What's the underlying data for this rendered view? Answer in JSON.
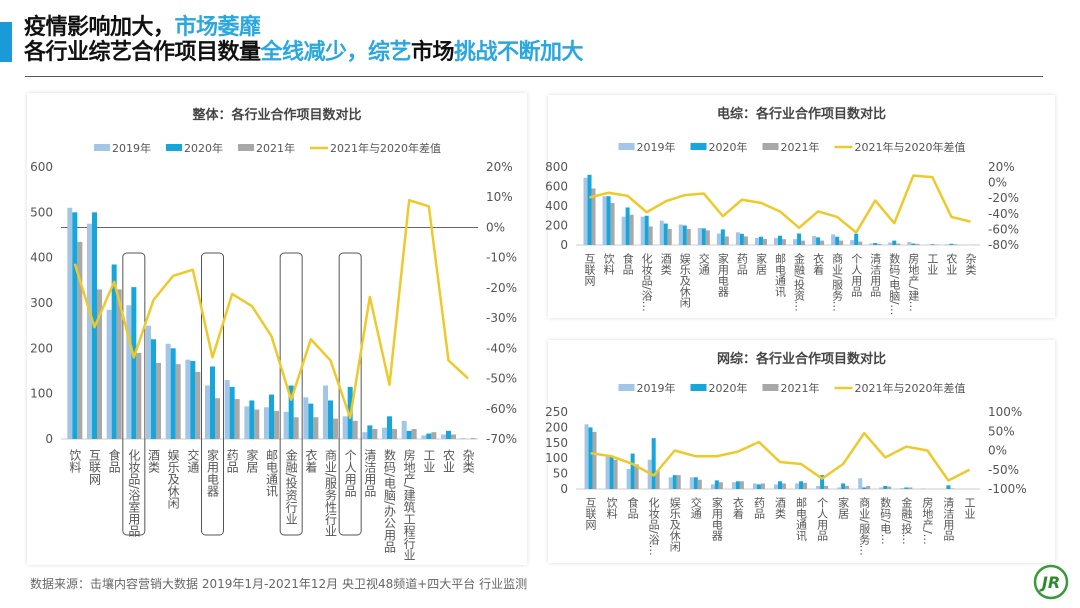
{
  "header": {
    "line1": [
      {
        "text": "疫情影响加大，",
        "accent": false
      },
      {
        "text": "市场萎靡",
        "accent": true
      }
    ],
    "line2": [
      {
        "text": "各行业综艺合作项目数量",
        "accent": false
      },
      {
        "text": "全线减少，综艺",
        "accent": true
      },
      {
        "text": "市场",
        "accent": false
      },
      {
        "text": "挑战不断加大",
        "accent": true
      }
    ]
  },
  "footer": {
    "source": "数据来源：击壤内容营销大数据 2019年1月-2021年12月 央卫视48频道+四大平台 行业监测"
  },
  "logo": {
    "text": "JR"
  },
  "colors": {
    "accent": "#2aa7df",
    "s2019": "#a3c6e6",
    "s2020": "#17a6da",
    "s2021": "#a8a8a8",
    "line": "#eec92c"
  },
  "chart_data": [
    {
      "type": "bar+line",
      "title": "整体：各行业合作项目数对比",
      "legend": [
        "2019年",
        "2020年",
        "2021年",
        "2021年与2020年差值"
      ],
      "legend_position": "top",
      "categories": [
        "饮料",
        "互联网",
        "食品",
        "化妆品/浴室用品",
        "酒类",
        "娱乐及休闲",
        "交通",
        "家用电器",
        "药品",
        "家居",
        "邮电通讯",
        "金融/投资行业",
        "衣着",
        "商业/服务性行业",
        "个人用品",
        "清洁用品",
        "数码/电脑/办公用品",
        "房地产/建筑工程行业",
        "工业",
        "农业",
        "杂类"
      ],
      "highlighted": [
        "化妆品/浴室用品",
        "家用电器",
        "金融/投资行业",
        "个人用品"
      ],
      "series": [
        {
          "name": "2019年",
          "type": "bar",
          "values": [
            510,
            475,
            285,
            295,
            250,
            210,
            175,
            118,
            130,
            72,
            70,
            60,
            92,
            118,
            50,
            15,
            25,
            40,
            8,
            10,
            2
          ]
        },
        {
          "name": "2020年",
          "type": "bar",
          "values": [
            500,
            500,
            385,
            335,
            220,
            200,
            172,
            160,
            115,
            85,
            98,
            118,
            78,
            85,
            115,
            30,
            50,
            18,
            12,
            18,
            0
          ]
        },
        {
          "name": "2021年",
          "type": "bar",
          "values": [
            435,
            330,
            330,
            190,
            168,
            165,
            148,
            90,
            88,
            65,
            62,
            48,
            48,
            45,
            40,
            22,
            22,
            22,
            15,
            10,
            2
          ]
        },
        {
          "name": "2021年与2020年差值",
          "type": "line",
          "axis": "right",
          "values": [
            -12,
            -33,
            -18,
            -43,
            -24,
            -16,
            -14,
            -43,
            -22,
            -26,
            -36,
            -57,
            -37,
            -44,
            -63,
            -23,
            -52,
            9,
            7,
            -44,
            -50
          ]
        }
      ],
      "ylim": [
        0,
        600
      ],
      "yticks": [
        "0",
        "100",
        "200",
        "300",
        "400",
        "500",
        "600"
      ],
      "y2lim": [
        -70,
        20
      ],
      "y2ticks": [
        "-70%",
        "-60%",
        "-50%",
        "-40%",
        "-30%",
        "-20%",
        "-10%",
        "0%",
        "10%",
        "20%"
      ],
      "zero_line": true
    },
    {
      "type": "bar+line",
      "title": "电综：各行业合作项目数对比",
      "legend": [
        "2019年",
        "2020年",
        "2021年",
        "2021年与2020年差值"
      ],
      "legend_position": "top",
      "categories": [
        "互联网",
        "饮料",
        "食品",
        "化妆品/浴…",
        "酒类",
        "娱乐及休闲",
        "交通",
        "家用电器",
        "药品",
        "家居",
        "邮电通讯",
        "金融/投资…",
        "衣着",
        "商业/服务…",
        "个人用品",
        "清洁用品",
        "数码/电脑/…",
        "房地产/建…",
        "工业",
        "农业",
        "杂类"
      ],
      "series": [
        {
          "name": "2019年",
          "type": "bar",
          "values": [
            690,
            500,
            290,
            290,
            250,
            210,
            175,
            118,
            130,
            72,
            70,
            60,
            92,
            110,
            50,
            15,
            25,
            30,
            5,
            8,
            2
          ]
        },
        {
          "name": "2020年",
          "type": "bar",
          "values": [
            720,
            500,
            385,
            300,
            220,
            200,
            170,
            160,
            115,
            85,
            95,
            118,
            78,
            85,
            115,
            20,
            45,
            15,
            8,
            12,
            0
          ]
        },
        {
          "name": "2021年",
          "type": "bar",
          "values": [
            580,
            430,
            310,
            190,
            165,
            165,
            150,
            88,
            88,
            62,
            60,
            45,
            45,
            45,
            35,
            12,
            15,
            12,
            5,
            8,
            2
          ]
        },
        {
          "name": "2021年与2020年差值",
          "type": "line",
          "axis": "right",
          "values": [
            -19,
            -13,
            -17,
            -38,
            -24,
            -16,
            -14,
            -43,
            -22,
            -26,
            -37,
            -58,
            -37,
            -44,
            -64,
            -23,
            -52,
            9,
            7,
            -44,
            -50
          ]
        }
      ],
      "ylim": [
        0,
        800
      ],
      "yticks": [
        "0",
        "200",
        "400",
        "600",
        "800"
      ],
      "y2lim": [
        -80,
        20
      ],
      "y2ticks": [
        "-80%",
        "-60%",
        "-40%",
        "-20%",
        "0%",
        "20%"
      ]
    },
    {
      "type": "bar+line",
      "title": "网综：各行业合作项目数对比",
      "legend": [
        "2019年",
        "2020年",
        "2021年",
        "2021年与2020年差值"
      ],
      "legend_position": "top",
      "categories": [
        "互联网",
        "饮料",
        "食品",
        "化妆品/浴…",
        "娱乐及休闲",
        "交通",
        "家用电器",
        "衣着",
        "药品",
        "酒类",
        "邮电通讯",
        "个人用品",
        "家居",
        "商业/服务…",
        "数码/电…",
        "金融/投…",
        "房地产/…",
        "清洁用品",
        "工业"
      ],
      "series": [
        {
          "name": "2019年",
          "type": "bar",
          "values": [
            210,
            105,
            65,
            95,
            38,
            38,
            15,
            22,
            18,
            15,
            18,
            10,
            5,
            35,
            5,
            3,
            2,
            0,
            0
          ]
        },
        {
          "name": "2020年",
          "type": "bar",
          "values": [
            200,
            105,
            115,
            165,
            45,
            38,
            28,
            25,
            15,
            25,
            25,
            45,
            18,
            5,
            10,
            5,
            0,
            12,
            0
          ]
        },
        {
          "name": "2021年",
          "type": "bar",
          "values": [
            185,
            95,
            80,
            60,
            45,
            30,
            22,
            25,
            18,
            18,
            20,
            10,
            10,
            10,
            8,
            5,
            0,
            2,
            0
          ]
        },
        {
          "name": "2021年与2020年差值",
          "type": "line",
          "axis": "right",
          "values": [
            -7,
            -15,
            -35,
            -65,
            0,
            -15,
            -15,
            -3,
            22,
            -30,
            -35,
            -73,
            -35,
            45,
            -18,
            10,
            0,
            -78,
            -50
          ]
        }
      ],
      "ylim": [
        0,
        250
      ],
      "yticks": [
        "0",
        "50",
        "100",
        "150",
        "200",
        "250"
      ],
      "y2lim": [
        -100,
        100
      ],
      "y2ticks": [
        "-100%",
        "-50%",
        "0%",
        "50%",
        "100%"
      ]
    }
  ]
}
